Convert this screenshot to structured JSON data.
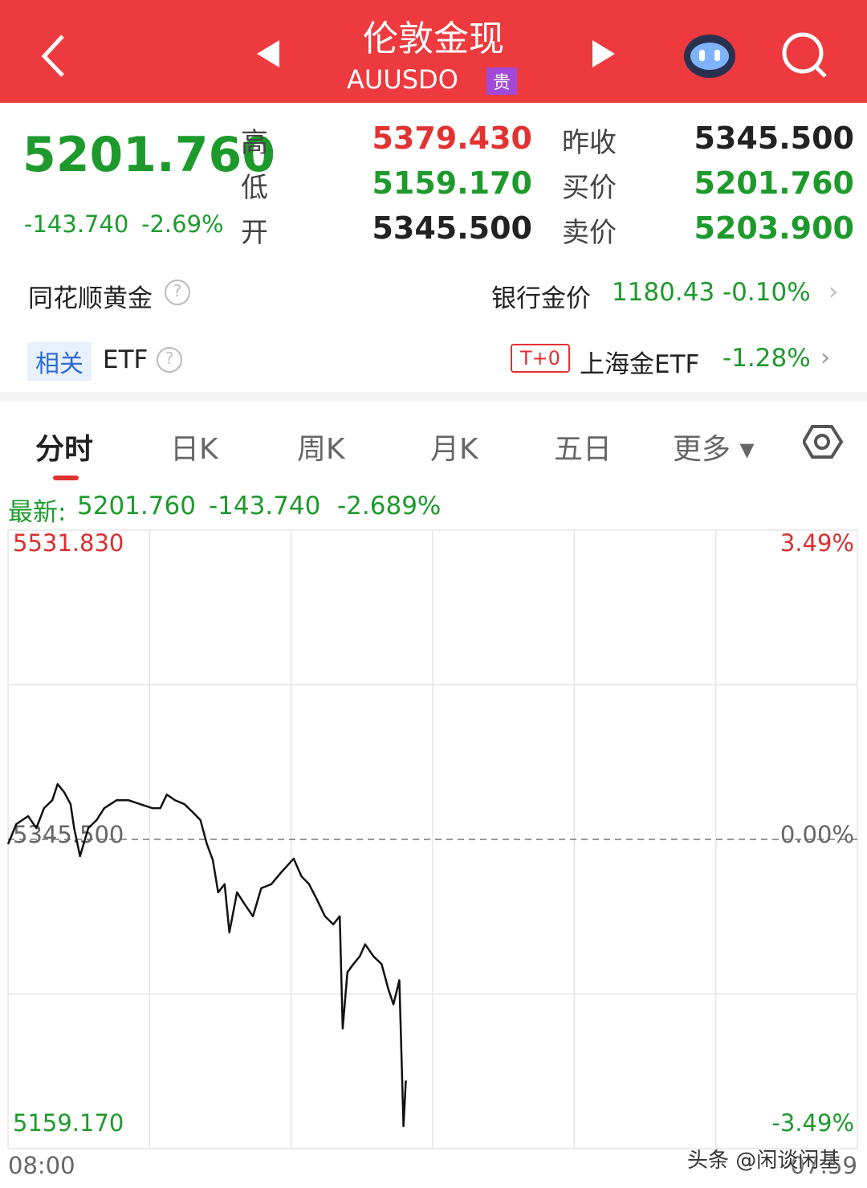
{
  "header": {
    "title": "伦敦金现",
    "code": "AUUSDO",
    "badge": "贵"
  },
  "quote": {
    "price": "5201.760",
    "change": "-143.740",
    "change_pct": "-2.69%",
    "mid": [
      {
        "label": "高",
        "value": "5379.430"
      },
      {
        "label": "低",
        "value": "5159.170"
      },
      {
        "label": "开",
        "value": "5345.500"
      }
    ],
    "right": [
      {
        "label": "昨收",
        "value": "5345.500"
      },
      {
        "label": "买价",
        "value": "5201.760"
      },
      {
        "label": "卖价",
        "value": "5203.900"
      }
    ]
  },
  "gold_row": {
    "label": "同花顺黄金",
    "bank_label": "银行金价",
    "bank_price": "1180.43",
    "bank_change": "-0.10%"
  },
  "etf_row": {
    "tag": "相关",
    "label": "ETF",
    "badge": "T+0",
    "name": "上海金ETF",
    "change": "-1.28%"
  },
  "tabs": [
    "分时",
    "日K",
    "周K",
    "月K",
    "五日",
    "更多"
  ],
  "latest": {
    "label": "最新:",
    "price": "5201.760",
    "change": "-143.740",
    "change_pct": "-2.689%"
  },
  "chart_data": {
    "type": "line",
    "color": "#111111",
    "x": [
      0,
      14,
      34,
      48,
      61,
      75,
      84,
      95,
      106,
      112,
      122,
      136,
      150,
      163,
      184,
      204,
      224,
      245,
      258,
      269,
      283,
      299,
      313,
      326,
      337,
      347,
      356,
      367,
      375,
      388,
      401,
      415,
      429,
      446,
      463,
      484,
      497,
      510,
      524,
      537,
      551,
      562,
      567,
      575,
      585,
      596,
      605,
      619,
      633,
      644,
      653,
      663,
      670,
      674
    ],
    "values": [
      5342.6,
      5354.7,
      5359.5,
      5352.3,
      5364.3,
      5369.1,
      5378.8,
      5374.0,
      5366.7,
      5352.3,
      5335.4,
      5352.3,
      5357.1,
      5364.3,
      5369.1,
      5369.1,
      5366.7,
      5364.3,
      5364.3,
      5372.5,
      5369.1,
      5366.7,
      5361.9,
      5357.1,
      5342.6,
      5333.0,
      5313.6,
      5318.5,
      5289.5,
      5313.6,
      5306.4,
      5299.2,
      5316.1,
      5318.5,
      5325.7,
      5333.9,
      5323.3,
      5318.5,
      5308.8,
      5299.2,
      5294.3,
      5299.2,
      5231.6,
      5265.4,
      5270.3,
      5275.1,
      5282.3,
      5275.1,
      5270.3,
      5255.7,
      5246.1,
      5260.6,
      5172.7,
      5200.2
    ],
    "xlim": [
      0,
      1439
    ],
    "xticks": [
      {
        "value": 0,
        "label": "08:00"
      },
      {
        "value": 1439,
        "label": "07:59"
      }
    ],
    "ylim": [
      5159.17,
      5531.83
    ],
    "yticks": [
      {
        "value": 5531.83,
        "label": "5531.830"
      },
      {
        "value": 5345.5,
        "label": "5345.500"
      },
      {
        "value": 5159.17,
        "label": "5159.170"
      }
    ],
    "y2lim": [
      -3.49,
      3.49
    ],
    "y2ticks": [
      {
        "value": 3.49,
        "label": "3.49%"
      },
      {
        "value": 0,
        "label": "0.00%"
      },
      {
        "value": -3.49,
        "label": "-3.49%"
      }
    ],
    "grid": true
  },
  "watermark": "头条 @闲谈闲基"
}
